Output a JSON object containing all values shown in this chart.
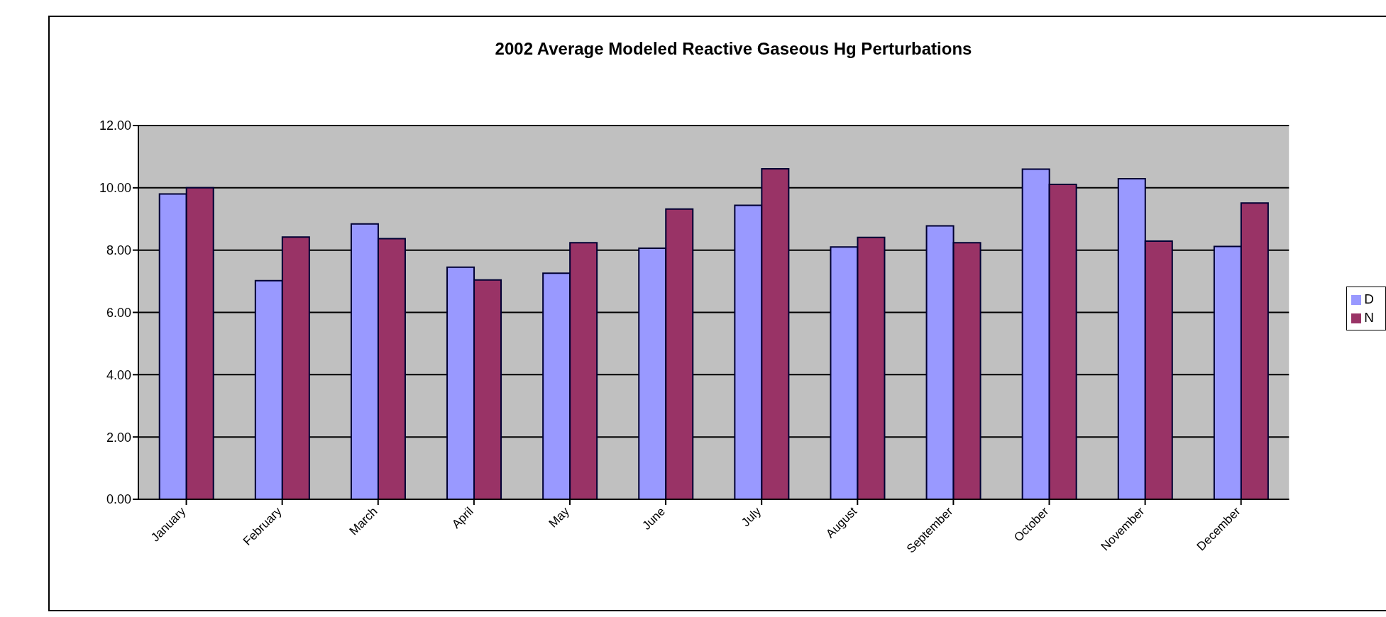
{
  "chart_data": {
    "type": "bar",
    "title": "2002 Average Modeled Reactive Gaseous Hg Perturbations",
    "categories": [
      "January",
      "February",
      "March",
      "April",
      "May",
      "June",
      "July",
      "August",
      "September",
      "October",
      "November",
      "December"
    ],
    "series": [
      {
        "name": "D",
        "color": "#9999ff",
        "values": [
          9.8,
          7.02,
          8.84,
          7.45,
          7.26,
          8.06,
          9.44,
          8.1,
          8.78,
          10.6,
          10.29,
          8.12
        ]
      },
      {
        "name": "N",
        "color": "#993366",
        "values": [
          10.0,
          8.42,
          8.37,
          7.04,
          8.24,
          9.32,
          10.61,
          8.41,
          8.24,
          10.11,
          8.29,
          9.51
        ]
      }
    ],
    "ylim": [
      0,
      12
    ],
    "yticks": [
      {
        "value": 0,
        "label": "0.00"
      },
      {
        "value": 2,
        "label": "2.00"
      },
      {
        "value": 4,
        "label": "4.00"
      },
      {
        "value": 6,
        "label": "6.00"
      },
      {
        "value": 8,
        "label": "8.00"
      },
      {
        "value": 10,
        "label": "10.00"
      },
      {
        "value": 12,
        "label": "12.00"
      }
    ],
    "grid": "y",
    "legend": "right"
  }
}
